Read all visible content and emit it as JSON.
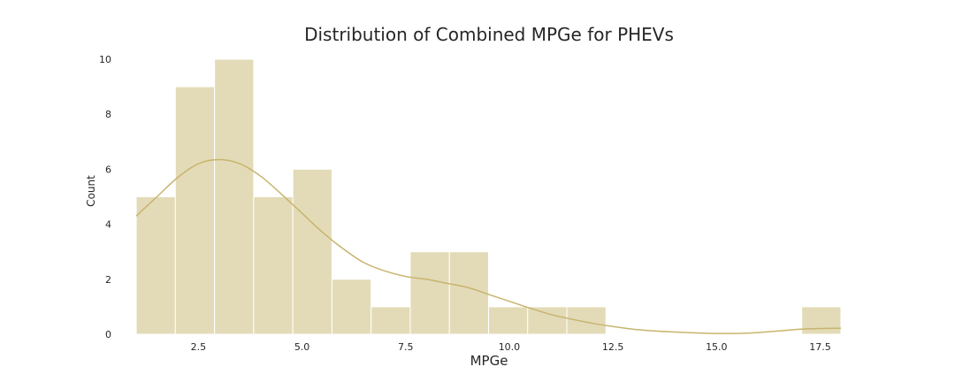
{
  "chart_data": {
    "type": "bar",
    "title": "Distribution of Combined MPGe for PHEVs",
    "xlabel": "MPGe",
    "ylabel": "Count",
    "xlim": [
      0.7,
      18.3
    ],
    "ylim": [
      0,
      10
    ],
    "xticks": [
      "2.5",
      "5.0",
      "7.5",
      "10.0",
      "12.5",
      "15.0",
      "17.5"
    ],
    "xtick_values": [
      2.5,
      5.0,
      7.5,
      10.0,
      12.5,
      15.0,
      17.5
    ],
    "yticks": [
      "0",
      "2",
      "4",
      "6",
      "8",
      "10"
    ],
    "ytick_values": [
      0,
      2,
      4,
      6,
      8,
      10
    ],
    "bin_edges": [
      1.0,
      1.944,
      2.889,
      3.833,
      4.778,
      5.722,
      6.667,
      7.611,
      8.556,
      9.5,
      10.444,
      11.389,
      12.333,
      13.278,
      14.222,
      15.167,
      16.111,
      17.056,
      18.0
    ],
    "counts": [
      5,
      9,
      10,
      5,
      6,
      2,
      1,
      3,
      3,
      1,
      1,
      1,
      0,
      0,
      0,
      0,
      0,
      1
    ],
    "kde": {
      "x": [
        1.0,
        1.5,
        2.0,
        2.5,
        3.0,
        3.5,
        4.0,
        4.5,
        5.0,
        5.5,
        6.0,
        6.5,
        7.0,
        7.5,
        8.0,
        8.5,
        9.0,
        9.5,
        10.0,
        10.5,
        11.0,
        11.5,
        12.0,
        12.5,
        13.0,
        13.5,
        14.0,
        14.5,
        15.0,
        15.5,
        16.0,
        16.5,
        17.0,
        17.5,
        18.0
      ],
      "y": [
        4.3,
        5.0,
        5.7,
        6.2,
        6.35,
        6.2,
        5.75,
        5.1,
        4.4,
        3.7,
        3.1,
        2.6,
        2.3,
        2.1,
        2.0,
        1.85,
        1.7,
        1.45,
        1.2,
        0.95,
        0.72,
        0.55,
        0.4,
        0.28,
        0.18,
        0.12,
        0.08,
        0.05,
        0.03,
        0.03,
        0.06,
        0.12,
        0.18,
        0.21,
        0.22
      ]
    },
    "grid": false,
    "legend": "none",
    "bar_color": "#e3dbb7",
    "bar_edge_color": "#ffffff",
    "line_color": "#c8b46e",
    "text_color": "#262626"
  }
}
